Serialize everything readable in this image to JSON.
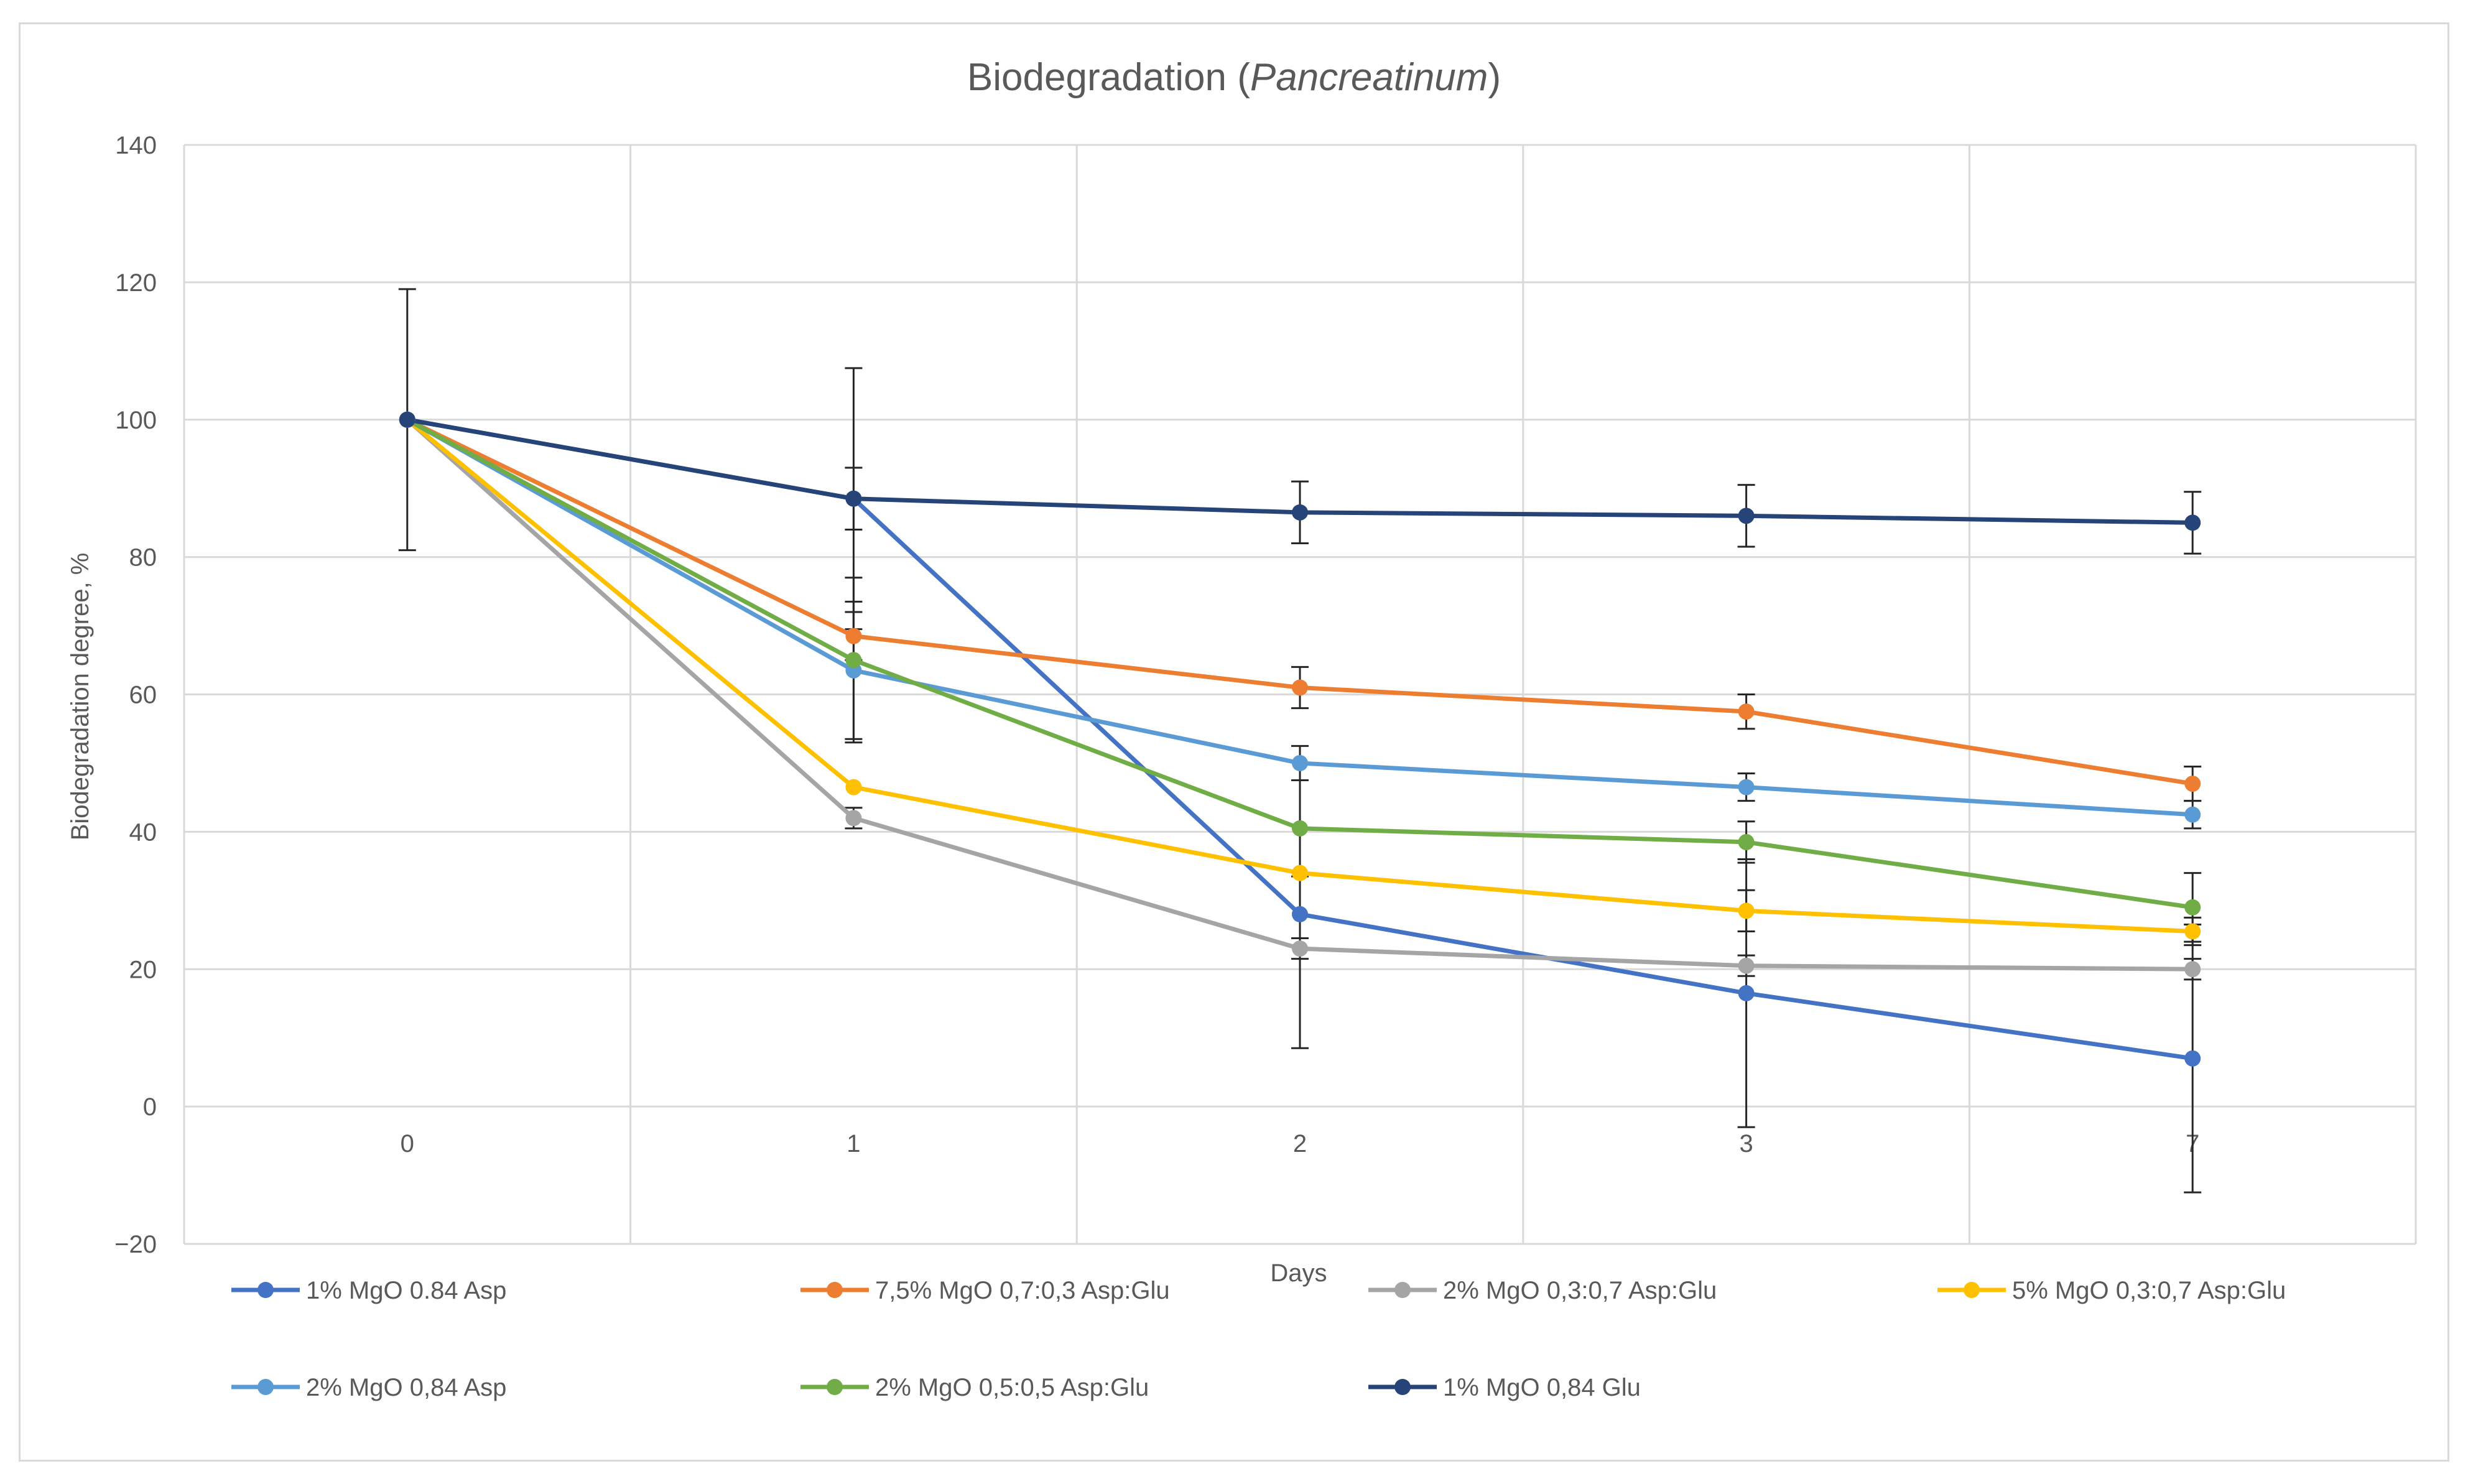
{
  "chart_data": {
    "type": "line",
    "title": "Biodegradation (",
    "title_italic": "Pancreatinum",
    "title_suffix": ")",
    "xlabel": "Days",
    "ylabel": "Biodegradation degree, %",
    "categories": [
      "0",
      "1",
      "2",
      "3",
      "7"
    ],
    "ylim": [
      -20,
      140
    ],
    "yticks": [
      -20,
      0,
      20,
      40,
      60,
      80,
      100,
      120,
      140
    ],
    "grid": true,
    "legend_position": "bottom",
    "series": [
      {
        "name": "1% MgO 0.84 Asp",
        "color": "#4472C4",
        "values": [
          100,
          88.5,
          28,
          16.5,
          7
        ],
        "errors": [
          0,
          4.5,
          19.5,
          19.5,
          19.5
        ]
      },
      {
        "name": "7,5% MgO 0,7:0,3 Asp:Glu",
        "color": "#ED7D31",
        "values": [
          100,
          68.5,
          61,
          57.5,
          47
        ],
        "errors": [
          0,
          3.5,
          3,
          2.5,
          2.5
        ]
      },
      {
        "name": "2% MgO 0,3:0,7 Asp:Glu",
        "color": "#A5A5A5",
        "values": [
          100,
          42,
          23,
          20.5,
          20
        ],
        "errors": [
          0,
          1.5,
          1.5,
          1.5,
          1.5
        ]
      },
      {
        "name": "5% MgO 0,3:0,7 Asp:Glu",
        "color": "#FFC000",
        "values": [
          100,
          46.5,
          34,
          28.5,
          25.5
        ],
        "errors": [
          0,
          0,
          0,
          3,
          2
        ]
      },
      {
        "name": "2% MgO 0,84 Asp",
        "color": "#5B9BD5",
        "values": [
          100,
          63.5,
          50,
          46.5,
          42.5
        ],
        "errors": [
          0,
          10,
          2.5,
          2,
          2
        ]
      },
      {
        "name": "2% MgO 0,5:0,5 Asp:Glu",
        "color": "#70AD47",
        "values": [
          100,
          65,
          40.5,
          38.5,
          29
        ],
        "errors": [
          0,
          12,
          7,
          3,
          5
        ]
      },
      {
        "name": "1% MgO 0,84 Glu",
        "color": "#264478",
        "values": [
          100,
          88.5,
          86.5,
          86,
          85
        ],
        "errors": [
          19,
          19,
          4.5,
          4.5,
          4.5
        ]
      }
    ]
  }
}
